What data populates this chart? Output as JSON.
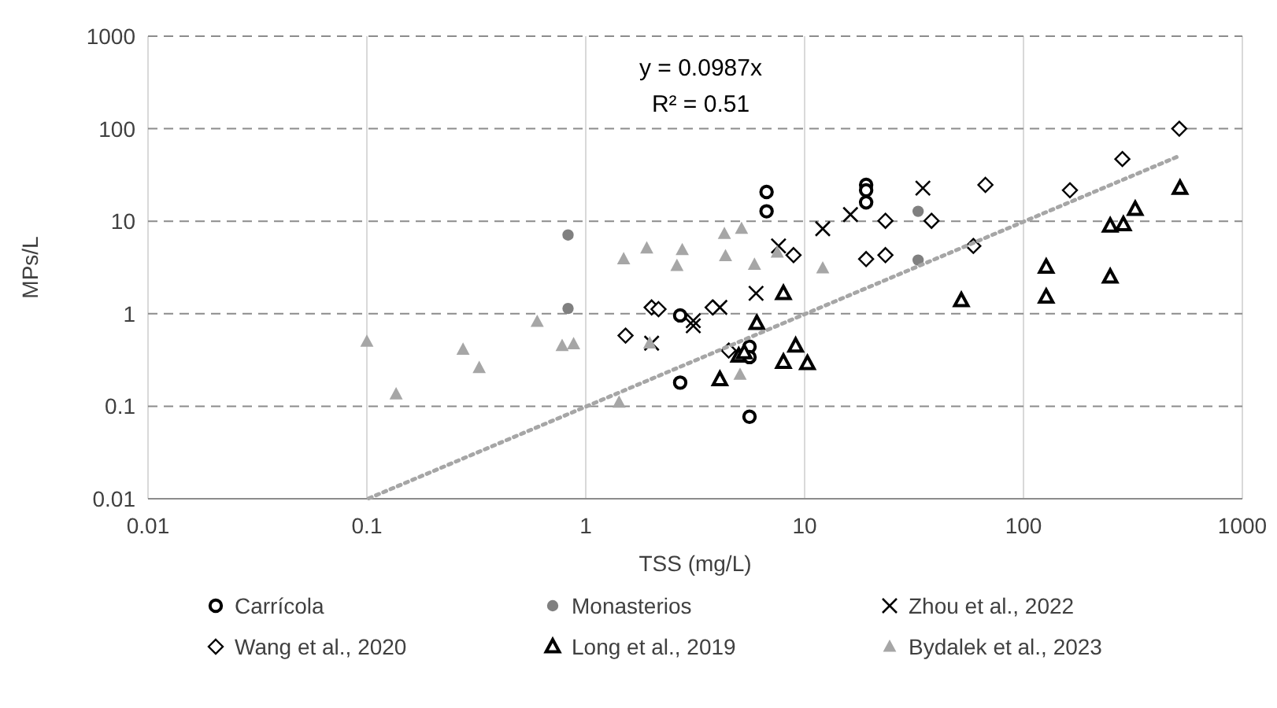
{
  "chart_data": {
    "type": "scatter",
    "xlabel": "TSS (mg/L)",
    "ylabel": "MPs/L",
    "log": "xy",
    "grid": true,
    "legend": "bottom",
    "xlim": [
      0.01,
      1000
    ],
    "xticks": [
      0.01,
      0.1,
      1,
      10,
      100,
      1000
    ],
    "ylim": [
      0.01,
      1000
    ],
    "yticks": [
      0.01,
      0.1,
      1,
      10,
      100,
      1000
    ],
    "annotations": [
      "y = 0.0987x",
      "R² = 0.51"
    ],
    "series": [
      {
        "name": "Carrícola",
        "color": "#000000",
        "marker": "circle",
        "x": [
          6.7,
          6.7,
          19.1,
          19.1,
          19.1,
          2.7,
          2.7,
          5.6,
          5.6,
          5.6
        ],
        "values": [
          20.7,
          12.8,
          24.7,
          21.6,
          16.0,
          0.96,
          0.18,
          0.44,
          0.34,
          0.077
        ]
      },
      {
        "name": "Monasterios",
        "color": "#808080",
        "marker": "circle",
        "x": [
          0.83,
          0.83,
          33,
          33
        ],
        "values": [
          7.1,
          1.14,
          12.8,
          3.8
        ]
      },
      {
        "name": "Zhou et al., 2022",
        "color": "#000000",
        "marker": "cross",
        "x": [
          2.0,
          3.1,
          3.1,
          4.1,
          6.0,
          7.6,
          12.1,
          16.2,
          34.7
        ],
        "values": [
          0.48,
          0.84,
          0.74,
          1.17,
          1.66,
          5.4,
          8.3,
          11.8,
          22.8
        ]
      },
      {
        "name": "Wang et al., 2020",
        "color": "#000000",
        "marker": "diamond",
        "x": [
          1.52,
          2.0,
          2.15,
          3.8,
          4.5,
          8.9,
          19.1,
          23.4,
          23.4,
          38,
          67,
          59,
          163,
          283,
          515
        ],
        "values": [
          0.58,
          1.17,
          1.12,
          1.17,
          0.4,
          4.3,
          3.9,
          4.3,
          10.1,
          10.1,
          24.7,
          5.4,
          21.6,
          47,
          100
        ]
      },
      {
        "name": "Long et al., 2019",
        "color": "#000000",
        "marker": "triangle",
        "x": [
          4.1,
          5.0,
          5.3,
          6.05,
          8.0,
          9.1,
          8.0,
          10.3,
          52,
          127,
          127,
          249,
          249,
          286,
          324,
          519
        ],
        "values": [
          0.195,
          0.35,
          0.38,
          0.79,
          1.66,
          0.45,
          0.3,
          0.29,
          1.39,
          3.2,
          1.52,
          2.5,
          8.9,
          9.2,
          13.5,
          22.8
        ]
      },
      {
        "name": "Bydalek et al., 2023",
        "color": "#a6a6a6",
        "marker": "triangle",
        "x": [
          0.1,
          0.136,
          0.275,
          0.326,
          0.6,
          0.78,
          0.88,
          1.49,
          1.42,
          1.9,
          2.61,
          2.76,
          4.3,
          5.15,
          4.35,
          5.9,
          7.5,
          12.1,
          1.96,
          5.07
        ],
        "values": [
          0.5,
          0.135,
          0.41,
          0.26,
          0.82,
          0.45,
          0.47,
          3.9,
          0.11,
          5.1,
          3.3,
          4.9,
          7.3,
          8.3,
          4.2,
          3.4,
          4.6,
          3.1,
          0.48,
          0.22
        ]
      },
      {
        "type": "line",
        "color": "#a6a6a6",
        "line_style": "dotted",
        "marker": "none",
        "x": [
          0.102,
          510
        ],
        "values": [
          0.0101,
          50.3
        ]
      }
    ]
  }
}
